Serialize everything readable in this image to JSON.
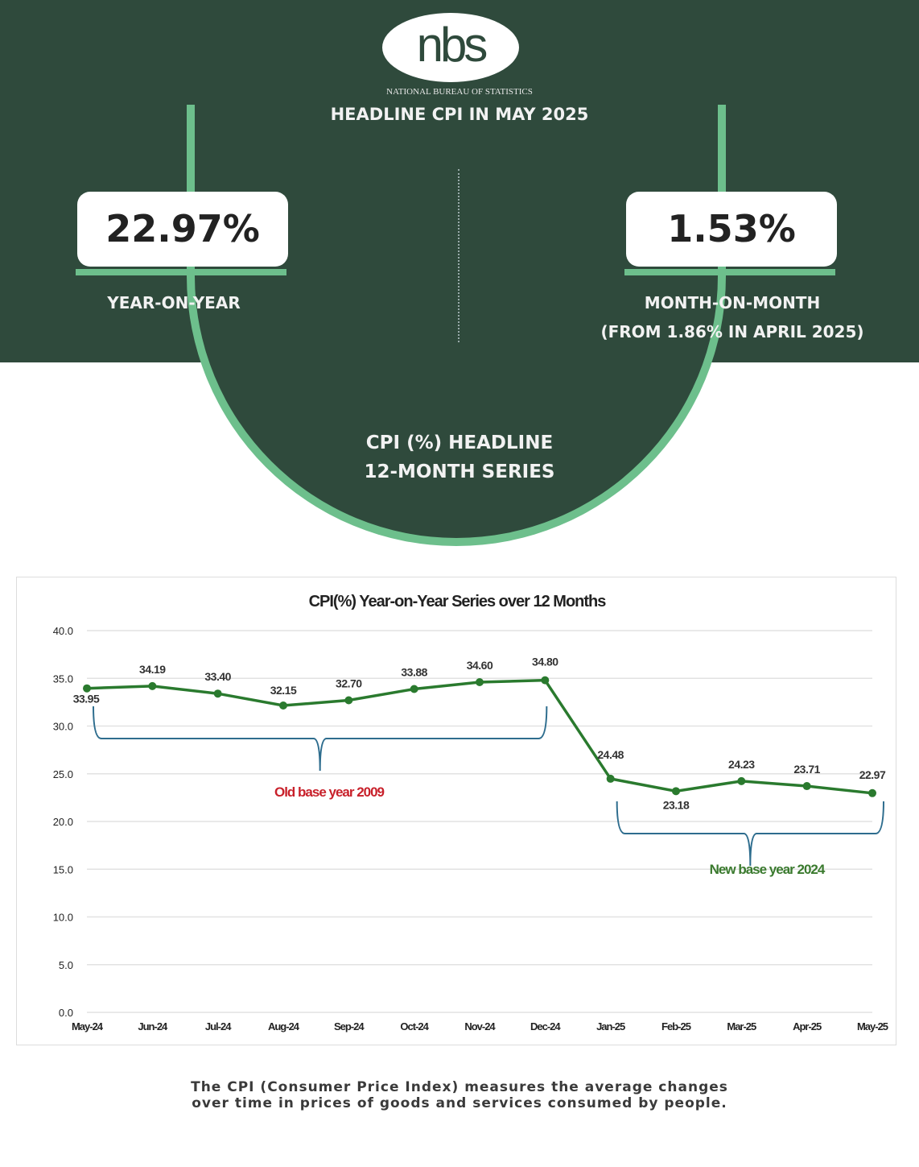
{
  "header": {
    "logo": "nbs",
    "org": "NATIONAL BUREAU OF STATISTICS",
    "title": "HEADLINE CPI IN MAY 2025"
  },
  "yoy": {
    "value": "22.97%",
    "label": "YEAR-ON-YEAR"
  },
  "mom": {
    "value": "1.53%",
    "label": "MONTH-ON-MONTH",
    "sublabel": "(FROM 1.86% IN APRIL 2025)"
  },
  "section": {
    "line1": "CPI (%)  HEADLINE",
    "line2": "12-MONTH SERIES"
  },
  "chart_data": {
    "type": "line",
    "title": "CPI(%) Year-on-Year Series over 12 Months",
    "categories": [
      "May-24",
      "Jun-24",
      "Jul-24",
      "Aug-24",
      "Sep-24",
      "Oct-24",
      "Nov-24",
      "Dec-24",
      "Jan-25",
      "Feb-25",
      "Mar-25",
      "Apr-25",
      "May-25"
    ],
    "values": [
      33.95,
      34.19,
      33.4,
      32.15,
      32.7,
      33.88,
      34.6,
      34.8,
      24.48,
      23.18,
      24.23,
      23.71,
      22.97
    ],
    "value_labels": [
      "33.95",
      "34.19",
      "33.40",
      "32.15",
      "32.70",
      "33.88",
      "34.60",
      "34.80",
      "24.48",
      "23.18",
      "24.23",
      "23.71",
      "22.97"
    ],
    "ylim": [
      0,
      40
    ],
    "yticks": [
      "0.0",
      "5.0",
      "10.0",
      "15.0",
      "20.0",
      "25.0",
      "30.0",
      "35.0",
      "40.0"
    ],
    "grid": true,
    "line_color": "#2a7a2e",
    "annotations": [
      {
        "text": "Old base year 2009",
        "color": "#c8202a",
        "range": [
          "May-24",
          "Dec-24"
        ]
      },
      {
        "text": "New base year 2024",
        "color": "#3a7a2e",
        "range": [
          "Jan-25",
          "May-25"
        ]
      }
    ]
  },
  "footer": {
    "line1": "The CPI (Consumer Price Index) measures the average changes",
    "line2": "over time in prices of goods and services consumed by people."
  }
}
